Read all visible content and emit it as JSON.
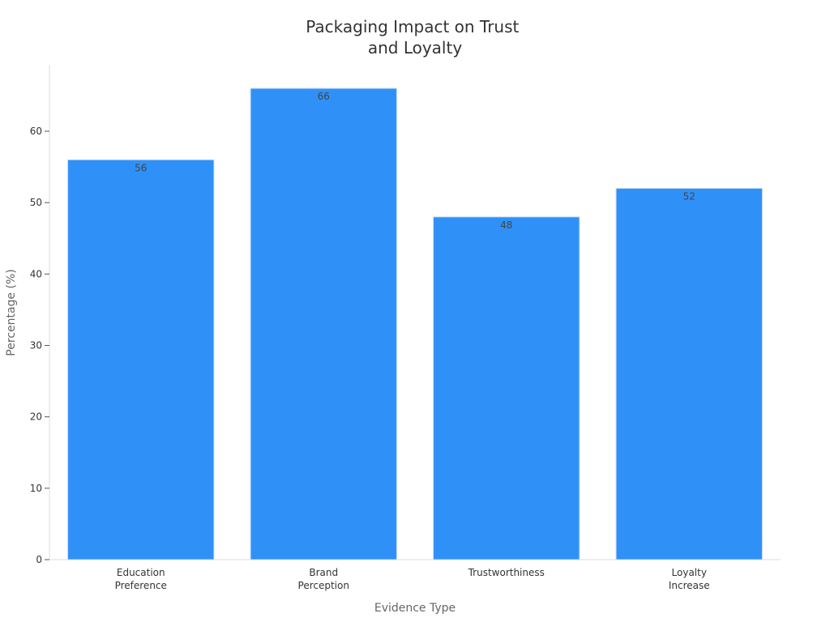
{
  "chart_data": {
    "type": "bar",
    "title": [
      "Packaging Impact on Trust",
      "and Loyalty"
    ],
    "xlabel": "Evidence Type",
    "ylabel": "Percentage (%)",
    "categories": [
      [
        "Education",
        "Preference"
      ],
      [
        "Brand",
        "Perception"
      ],
      [
        "Trustworthiness"
      ],
      [
        "Loyalty",
        "Increase"
      ]
    ],
    "values": [
      56,
      66,
      48,
      52
    ],
    "data_labels": [
      "56",
      "66",
      "48",
      "52"
    ],
    "yticks": [
      0,
      10,
      20,
      30,
      40,
      50,
      60
    ],
    "ytick_labels": [
      "0",
      "10",
      "20",
      "30",
      "40",
      "50",
      "60"
    ],
    "ylim": [
      0,
      69.3
    ],
    "grid": false,
    "legend": "none",
    "bar_color": "#2f91f8"
  }
}
